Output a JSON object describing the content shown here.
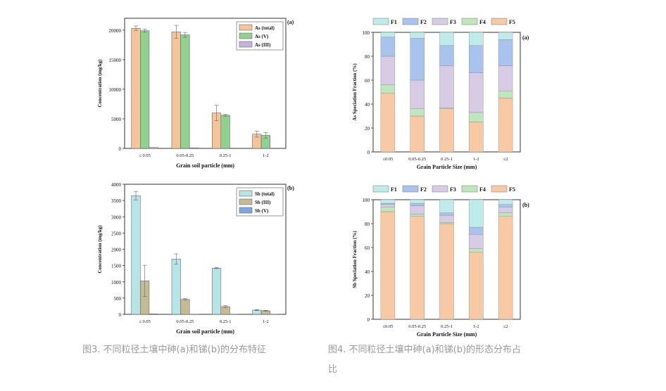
{
  "colors": {
    "as_total": "#f7c39b",
    "as_v": "#8fd18f",
    "as_iii": "#c6b3d9",
    "sb_total": "#b6e4e7",
    "sb_iii": "#c4bb95",
    "sb_v": "#7ea6e6",
    "f1": "#bfeceb",
    "f2": "#a9c3ef",
    "f3": "#d8cbe6",
    "f4": "#bfe6bd",
    "f5": "#f7c9a4"
  },
  "captions": {
    "fig3": "图3. 不同粒径土壤中砷(a)和锑(b)的分布特征",
    "fig4_line1": "图4. 不同粒径土壤中砷(a)和锑(b)的形态分布占",
    "fig4_line2": "比"
  },
  "chart_data": [
    {
      "type": "bar",
      "panel": "(a)",
      "categories": [
        "≤ 0.05",
        "0.05-0.25",
        "0.25-1",
        "1-2"
      ],
      "series": [
        {
          "name": "As (total)",
          "values": [
            20300,
            19700,
            6000,
            2400
          ],
          "errors": [
            400,
            1100,
            1300,
            500
          ],
          "color": "as_total"
        },
        {
          "name": "As (V)",
          "values": [
            19900,
            19200,
            5600,
            2200
          ],
          "errors": [
            250,
            400,
            150,
            450
          ],
          "color": "as_v"
        },
        {
          "name": "As (III)",
          "values": [
            150,
            100,
            0,
            0
          ],
          "errors": [
            0,
            0,
            0,
            0
          ],
          "color": "as_iii"
        }
      ],
      "xlabel": "Grain soil particle (mm)",
      "ylabel": "Concentration (mg/kg)",
      "ylim": [
        0,
        22000
      ],
      "yticks": [
        0,
        5000,
        10000,
        15000,
        20000
      ],
      "legend": "top-right"
    },
    {
      "type": "bar",
      "panel": "(b)",
      "categories": [
        "≤ 0.05",
        "0.05-0.25",
        "0.25-1",
        "1-2"
      ],
      "series": [
        {
          "name": "Sb (total)",
          "values": [
            3650,
            1700,
            1420,
            130
          ],
          "errors": [
            130,
            160,
            15,
            15
          ],
          "color": "sb_total"
        },
        {
          "name": "Sb (III)",
          "values": [
            1030,
            460,
            240,
            110
          ],
          "errors": [
            480,
            25,
            30,
            15
          ],
          "color": "sb_iii"
        },
        {
          "name": "Sb (V)",
          "values": [
            15,
            5,
            5,
            3
          ],
          "errors": [
            0,
            0,
            0,
            0
          ],
          "color": "sb_v"
        }
      ],
      "xlabel": "Grain soil particle (mm)",
      "ylabel": "Concentration (mg/kg)",
      "ylim": [
        0,
        4000
      ],
      "yticks": [
        0,
        500,
        1000,
        1500,
        2000,
        2500,
        3000,
        3500,
        4000
      ],
      "legend": "top-right"
    },
    {
      "type": "bar",
      "stacked": true,
      "panel": "(a)",
      "categories": [
        "≤0.05",
        "0.05-0.25",
        "0.25-1",
        "1-2",
        "≤2"
      ],
      "series": [
        {
          "name": "F5",
          "values": [
            49,
            30,
            36,
            25,
            45
          ],
          "color": "f5"
        },
        {
          "name": "F4",
          "values": [
            7,
            6,
            1,
            8,
            6
          ],
          "color": "f4"
        },
        {
          "name": "F3",
          "values": [
            24,
            24,
            35,
            33,
            21
          ],
          "color": "f3"
        },
        {
          "name": "F2",
          "values": [
            16,
            35,
            17,
            23,
            22
          ],
          "color": "f2"
        },
        {
          "name": "F1",
          "values": [
            4,
            5,
            11,
            11,
            6
          ],
          "color": "f1"
        }
      ],
      "legend_order": [
        "F1",
        "F2",
        "F3",
        "F4",
        "F5"
      ],
      "xlabel": "Grain Particle Size (mm)",
      "ylabel": "As Speciation Fraction (%)",
      "ylim": [
        0,
        100
      ],
      "yticks": [
        0,
        20,
        40,
        60,
        80,
        100
      ],
      "legend": "top"
    },
    {
      "type": "bar",
      "stacked": true,
      "panel": "(b)",
      "categories": [
        "≤0.05",
        "0.05-0.25",
        "0.25-1",
        "1-2",
        "≤2"
      ],
      "series": [
        {
          "name": "F5",
          "values": [
            90,
            86,
            80,
            56,
            86
          ],
          "color": "f5"
        },
        {
          "name": "F4",
          "values": [
            4,
            2,
            1,
            3,
            3
          ],
          "color": "f4"
        },
        {
          "name": "F3",
          "values": [
            2,
            7,
            6,
            12,
            5
          ],
          "color": "f3"
        },
        {
          "name": "F2",
          "values": [
            1,
            2,
            2,
            6,
            2
          ],
          "color": "f2"
        },
        {
          "name": "F1",
          "values": [
            3,
            3,
            11,
            23,
            4
          ],
          "color": "f1"
        }
      ],
      "legend_order": [
        "F1",
        "F2",
        "F3",
        "F4",
        "F5"
      ],
      "xlabel": "Grain Particle Size (mm)",
      "ylabel": "Sb Speciation Fraction (%)",
      "ylim": [
        0,
        100
      ],
      "yticks": [
        0,
        20,
        40,
        60,
        80,
        100
      ],
      "legend": "top"
    }
  ]
}
